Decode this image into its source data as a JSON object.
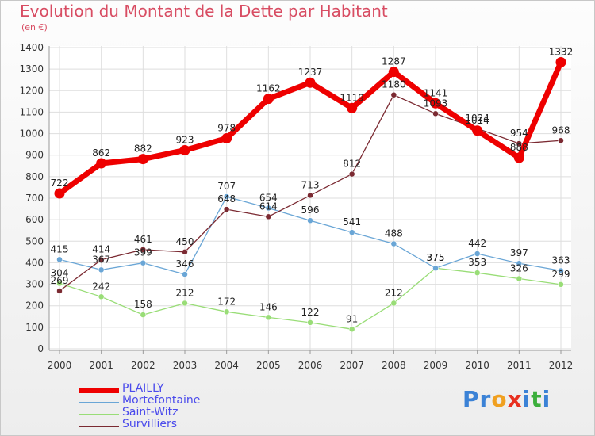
{
  "title": "Evolution du Montant de la Dette par Habitant",
  "unit_label": "(en €)",
  "logo": {
    "letters": [
      "P",
      "r",
      "o",
      "x",
      "i",
      "t",
      "i"
    ],
    "colors": [
      "#3b82d6",
      "#3b82d6",
      "#f0a020",
      "#e83020",
      "#3b82d6",
      "#3cae3c",
      "#3b82d6"
    ]
  },
  "chart_data": {
    "type": "line",
    "x": [
      "2000",
      "2001",
      "2002",
      "2003",
      "2004",
      "2005",
      "2006",
      "2007",
      "2008",
      "2009",
      "2010",
      "2011",
      "2012"
    ],
    "ylim": [
      0,
      1400
    ],
    "yticks": [
      "0",
      "100",
      "200",
      "300",
      "400",
      "500",
      "600",
      "700",
      "800",
      "900",
      "1000",
      "1100",
      "1200",
      "1300",
      "1400"
    ],
    "grid": true,
    "legend_position": "bottom-left",
    "series": [
      {
        "name": "PLAILLY",
        "color": "#ee0000",
        "values": [
          722,
          862,
          882,
          923,
          978,
          1162,
          1237,
          1119,
          1287,
          1141,
          1014,
          888,
          1332
        ],
        "labels": [
          "722",
          "862",
          "882",
          "923",
          "978",
          "1162",
          "1237",
          "1119",
          "1287",
          "1141",
          "1014",
          "888",
          "1332"
        ]
      },
      {
        "name": "Mortefontaine",
        "color": "#6aa6d6",
        "values": [
          415,
          367,
          399,
          346,
          707,
          654,
          596,
          541,
          488,
          375,
          442,
          397,
          363
        ],
        "labels": [
          "415",
          "367",
          "399",
          "346",
          "707",
          "654",
          "596",
          "541",
          "488",
          "375",
          "442",
          "397",
          "363"
        ]
      },
      {
        "name": "Saint-Witz",
        "color": "#99dd77",
        "values": [
          304,
          242,
          158,
          212,
          172,
          146,
          122,
          91,
          212,
          375,
          353,
          326,
          299
        ],
        "labels": [
          "304",
          "242",
          "158",
          "212",
          "172",
          "146",
          "122",
          "91",
          "212",
          "375",
          "353",
          "326",
          "299"
        ]
      },
      {
        "name": "Survilliers",
        "color": "#7b2a32",
        "values": [
          269,
          414,
          461,
          450,
          648,
          614,
          713,
          812,
          1180,
          1093,
          1024,
          954,
          968
        ],
        "labels": [
          "269",
          "414",
          "461",
          "450",
          "648",
          "614",
          "713",
          "812",
          "1180",
          "1093",
          "1024",
          "954",
          "968"
        ]
      }
    ]
  }
}
